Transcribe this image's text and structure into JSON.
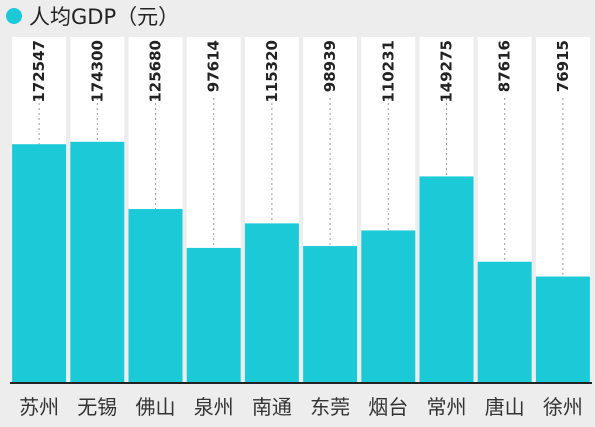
{
  "chart_data": {
    "type": "bar",
    "title": "",
    "xlabel": "",
    "ylabel": "",
    "ylim": [
      0,
      250000
    ],
    "grid": false,
    "legend": {
      "position": "top-left",
      "label": "人均GDP（元）",
      "color": "#1cc9d6"
    },
    "categories": [
      "苏州",
      "无锡",
      "佛山",
      "泉州",
      "南通",
      "东莞",
      "烟台",
      "常州",
      "唐山",
      "徐州"
    ],
    "series": [
      {
        "name": "人均GDP（元）",
        "color": "#1cc9d6",
        "values": [
          172547,
          174300,
          125680,
          97614,
          115320,
          98939,
          110231,
          149275,
          87616,
          76915
        ]
      }
    ]
  }
}
